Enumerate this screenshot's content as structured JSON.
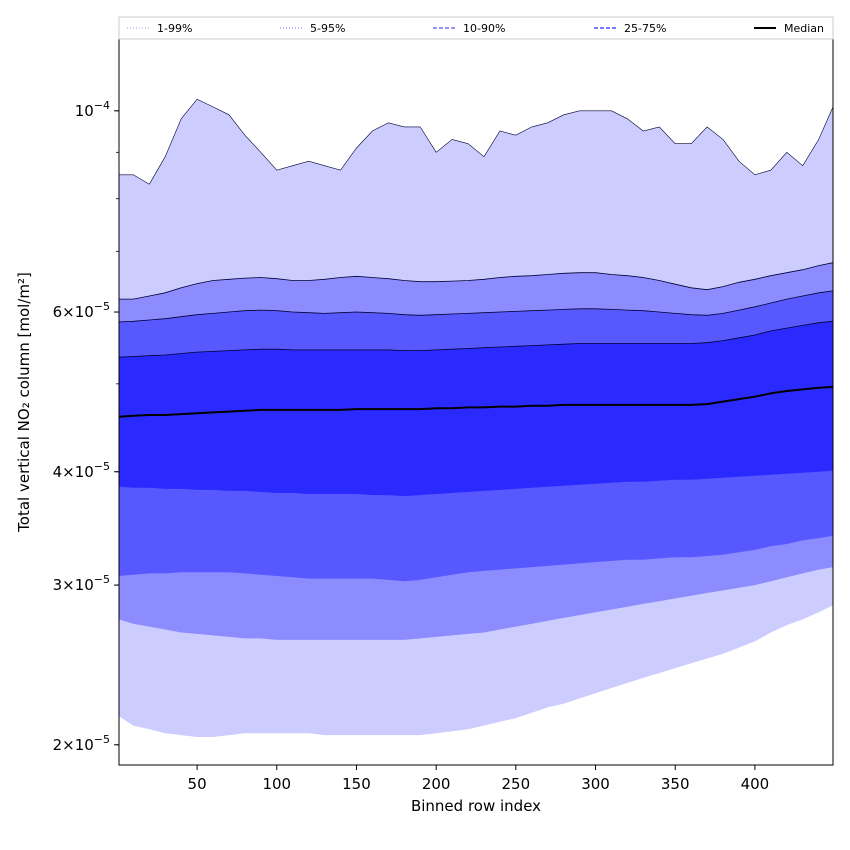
{
  "chart_data": {
    "type": "area",
    "xlabel": "Binned row index",
    "ylabel": "Total vertical NO₂ column [mol/m²]",
    "xlim": [
      1,
      449
    ],
    "ylim": [
      1.9e-05,
      0.00012
    ],
    "y_scale": "log",
    "x_ticks": [
      50,
      100,
      150,
      200,
      250,
      300,
      350,
      400
    ],
    "y_major_ticks": [
      {
        "value": 0.0001,
        "mantissa": "",
        "exponent": "−4"
      },
      {
        "value": 6e-05,
        "mantissa": "6",
        "exponent": "−5"
      },
      {
        "value": 4e-05,
        "mantissa": "4",
        "exponent": "−5"
      },
      {
        "value": 3e-05,
        "mantissa": "3",
        "exponent": "−5"
      },
      {
        "value": 2e-05,
        "mantissa": "2",
        "exponent": "−5"
      }
    ],
    "x": [
      1,
      10,
      20,
      30,
      40,
      50,
      60,
      70,
      80,
      90,
      100,
      110,
      120,
      130,
      140,
      150,
      160,
      170,
      180,
      190,
      200,
      210,
      220,
      230,
      240,
      250,
      260,
      270,
      280,
      290,
      300,
      310,
      320,
      330,
      340,
      350,
      360,
      370,
      380,
      390,
      400,
      410,
      420,
      430,
      440,
      449
    ],
    "bands": [
      {
        "name": "1-99%",
        "color": "#ccccff",
        "lower": [
          2.15e-05,
          2.1e-05,
          2.08e-05,
          2.06e-05,
          2.05e-05,
          2.04e-05,
          2.04e-05,
          2.05e-05,
          2.06e-05,
          2.06e-05,
          2.06e-05,
          2.06e-05,
          2.06e-05,
          2.05e-05,
          2.05e-05,
          2.05e-05,
          2.05e-05,
          2.05e-05,
          2.05e-05,
          2.05e-05,
          2.06e-05,
          2.07e-05,
          2.08e-05,
          2.1e-05,
          2.12e-05,
          2.14e-05,
          2.17e-05,
          2.2e-05,
          2.22e-05,
          2.25e-05,
          2.28e-05,
          2.31e-05,
          2.34e-05,
          2.37e-05,
          2.4e-05,
          2.43e-05,
          2.46e-05,
          2.49e-05,
          2.52e-05,
          2.56e-05,
          2.6e-05,
          2.66e-05,
          2.71e-05,
          2.75e-05,
          2.8e-05,
          2.85e-05
        ],
        "upper": [
          8.5e-05,
          8.5e-05,
          8.3e-05,
          8.9e-05,
          9.8e-05,
          0.000103,
          0.000101,
          9.9e-05,
          9.4e-05,
          9e-05,
          8.6e-05,
          8.7e-05,
          8.8e-05,
          8.7e-05,
          8.6e-05,
          9.1e-05,
          9.5e-05,
          9.7e-05,
          9.6e-05,
          9.6e-05,
          9e-05,
          9.3e-05,
          9.2e-05,
          8.9e-05,
          9.5e-05,
          9.4e-05,
          9.6e-05,
          9.7e-05,
          9.9e-05,
          0.0001,
          0.0001,
          0.0001,
          9.8e-05,
          9.5e-05,
          9.6e-05,
          9.2e-05,
          9.2e-05,
          9.6e-05,
          9.3e-05,
          8.8e-05,
          8.5e-05,
          8.6e-05,
          9e-05,
          8.7e-05,
          9.3e-05,
          0.000101
        ]
      },
      {
        "name": "5-95%",
        "color": "#8c8cff",
        "lower": [
          2.75e-05,
          2.72e-05,
          2.7e-05,
          2.68e-05,
          2.66e-05,
          2.65e-05,
          2.64e-05,
          2.63e-05,
          2.62e-05,
          2.62e-05,
          2.61e-05,
          2.61e-05,
          2.61e-05,
          2.61e-05,
          2.61e-05,
          2.61e-05,
          2.61e-05,
          2.61e-05,
          2.61e-05,
          2.62e-05,
          2.63e-05,
          2.64e-05,
          2.65e-05,
          2.66e-05,
          2.68e-05,
          2.7e-05,
          2.72e-05,
          2.74e-05,
          2.76e-05,
          2.78e-05,
          2.8e-05,
          2.82e-05,
          2.84e-05,
          2.86e-05,
          2.88e-05,
          2.9e-05,
          2.92e-05,
          2.94e-05,
          2.96e-05,
          2.98e-05,
          3e-05,
          3.03e-05,
          3.06e-05,
          3.09e-05,
          3.12e-05,
          3.14e-05
        ],
        "upper": [
          6.2e-05,
          6.2e-05,
          6.25e-05,
          6.3e-05,
          6.38e-05,
          6.45e-05,
          6.5e-05,
          6.52e-05,
          6.54e-05,
          6.55e-05,
          6.53e-05,
          6.5e-05,
          6.5e-05,
          6.52e-05,
          6.55e-05,
          6.57e-05,
          6.55e-05,
          6.53e-05,
          6.5e-05,
          6.48e-05,
          6.48e-05,
          6.49e-05,
          6.5e-05,
          6.52e-05,
          6.55e-05,
          6.57e-05,
          6.58e-05,
          6.6e-05,
          6.62e-05,
          6.63e-05,
          6.63e-05,
          6.6e-05,
          6.58e-05,
          6.55e-05,
          6.5e-05,
          6.44e-05,
          6.38e-05,
          6.35e-05,
          6.4e-05,
          6.47e-05,
          6.52e-05,
          6.58e-05,
          6.63e-05,
          6.68e-05,
          6.75e-05,
          6.8e-05
        ]
      },
      {
        "name": "10-90%",
        "color": "#5858ff",
        "lower": [
          3.07e-05,
          3.08e-05,
          3.09e-05,
          3.09e-05,
          3.1e-05,
          3.1e-05,
          3.1e-05,
          3.1e-05,
          3.09e-05,
          3.08e-05,
          3.07e-05,
          3.06e-05,
          3.05e-05,
          3.05e-05,
          3.05e-05,
          3.05e-05,
          3.05e-05,
          3.04e-05,
          3.03e-05,
          3.04e-05,
          3.06e-05,
          3.08e-05,
          3.1e-05,
          3.11e-05,
          3.12e-05,
          3.13e-05,
          3.14e-05,
          3.15e-05,
          3.16e-05,
          3.17e-05,
          3.18e-05,
          3.19e-05,
          3.2e-05,
          3.2e-05,
          3.21e-05,
          3.22e-05,
          3.22e-05,
          3.23e-05,
          3.24e-05,
          3.26e-05,
          3.28e-05,
          3.31e-05,
          3.33e-05,
          3.36e-05,
          3.38e-05,
          3.4e-05
        ],
        "upper": [
          5.85e-05,
          5.86e-05,
          5.88e-05,
          5.9e-05,
          5.93e-05,
          5.96e-05,
          5.98e-05,
          6e-05,
          6.02e-05,
          6.03e-05,
          6.02e-05,
          6e-05,
          5.99e-05,
          5.98e-05,
          5.99e-05,
          6e-05,
          5.99e-05,
          5.98e-05,
          5.96e-05,
          5.95e-05,
          5.96e-05,
          5.97e-05,
          5.98e-05,
          5.99e-05,
          6e-05,
          6.01e-05,
          6.02e-05,
          6.03e-05,
          6.04e-05,
          6.05e-05,
          6.05e-05,
          6.04e-05,
          6.03e-05,
          6.02e-05,
          6e-05,
          5.98e-05,
          5.96e-05,
          5.95e-05,
          5.98e-05,
          6.03e-05,
          6.08e-05,
          6.14e-05,
          6.2e-05,
          6.25e-05,
          6.3e-05,
          6.33e-05
        ]
      },
      {
        "name": "25-75%",
        "color": "#2a2aff",
        "lower": [
          3.85e-05,
          3.84e-05,
          3.84e-05,
          3.83e-05,
          3.83e-05,
          3.82e-05,
          3.82e-05,
          3.81e-05,
          3.81e-05,
          3.8e-05,
          3.79e-05,
          3.79e-05,
          3.78e-05,
          3.78e-05,
          3.78e-05,
          3.78e-05,
          3.77e-05,
          3.77e-05,
          3.76e-05,
          3.77e-05,
          3.78e-05,
          3.79e-05,
          3.8e-05,
          3.81e-05,
          3.82e-05,
          3.83e-05,
          3.84e-05,
          3.85e-05,
          3.86e-05,
          3.87e-05,
          3.88e-05,
          3.89e-05,
          3.9e-05,
          3.9e-05,
          3.91e-05,
          3.92e-05,
          3.92e-05,
          3.93e-05,
          3.94e-05,
          3.95e-05,
          3.96e-05,
          3.97e-05,
          3.98e-05,
          3.99e-05,
          4e-05,
          4.01e-05
        ],
        "upper": [
          5.35e-05,
          5.36e-05,
          5.37e-05,
          5.38e-05,
          5.4e-05,
          5.42e-05,
          5.43e-05,
          5.44e-05,
          5.45e-05,
          5.46e-05,
          5.46e-05,
          5.45e-05,
          5.45e-05,
          5.45e-05,
          5.45e-05,
          5.45e-05,
          5.45e-05,
          5.45e-05,
          5.44e-05,
          5.44e-05,
          5.45e-05,
          5.46e-05,
          5.47e-05,
          5.48e-05,
          5.49e-05,
          5.5e-05,
          5.51e-05,
          5.52e-05,
          5.53e-05,
          5.54e-05,
          5.54e-05,
          5.54e-05,
          5.54e-05,
          5.54e-05,
          5.54e-05,
          5.54e-05,
          5.54e-05,
          5.55e-05,
          5.58e-05,
          5.62e-05,
          5.66e-05,
          5.72e-05,
          5.76e-05,
          5.8e-05,
          5.84e-05,
          5.86e-05
        ]
      }
    ],
    "median": {
      "name": "Median",
      "color": "#000000",
      "values": [
        4.6e-05,
        4.61e-05,
        4.62e-05,
        4.62e-05,
        4.63e-05,
        4.64e-05,
        4.65e-05,
        4.66e-05,
        4.67e-05,
        4.68e-05,
        4.68e-05,
        4.68e-05,
        4.68e-05,
        4.68e-05,
        4.68e-05,
        4.69e-05,
        4.69e-05,
        4.69e-05,
        4.69e-05,
        4.69e-05,
        4.7e-05,
        4.7e-05,
        4.71e-05,
        4.71e-05,
        4.72e-05,
        4.72e-05,
        4.73e-05,
        4.73e-05,
        4.74e-05,
        4.74e-05,
        4.74e-05,
        4.74e-05,
        4.74e-05,
        4.74e-05,
        4.74e-05,
        4.74e-05,
        4.74e-05,
        4.75e-05,
        4.78e-05,
        4.81e-05,
        4.84e-05,
        4.88e-05,
        4.91e-05,
        4.93e-05,
        4.95e-05,
        4.96e-05
      ]
    },
    "legend": {
      "placement": "top",
      "entries": [
        {
          "label": "1-99%",
          "color": "#ccccff",
          "style": "dotted"
        },
        {
          "label": "5-95%",
          "color": "#8c8cff",
          "style": "dotted"
        },
        {
          "label": "10-90%",
          "color": "#5858ff",
          "style": "dashed"
        },
        {
          "label": "25-75%",
          "color": "#2a2aff",
          "style": "dashed"
        },
        {
          "label": "Median",
          "color": "#000000",
          "style": "solid"
        }
      ]
    },
    "grid": false
  }
}
